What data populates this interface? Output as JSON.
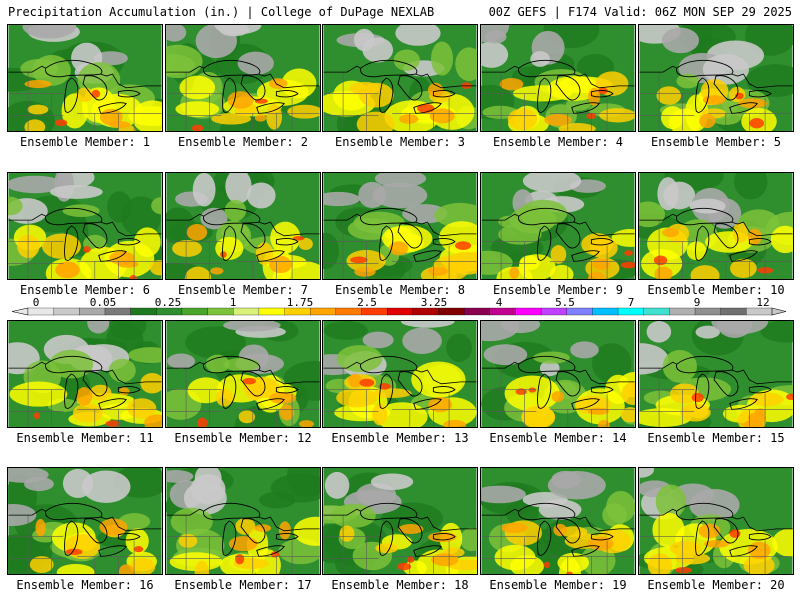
{
  "header": {
    "title": "Precipitation Accumulation (in.) | College of DuPage NEXLAB",
    "run_info": "00Z GEFS | F174 Valid: 06Z MON SEP 29 2025"
  },
  "legend": {
    "tick_labels": [
      "0",
      "0.05",
      "0.25",
      "1",
      "1.75",
      "2.5",
      "3.25",
      "4",
      "5.5",
      "7",
      "9",
      "12"
    ],
    "colors": [
      "#e8e8e8",
      "#c9c9c9",
      "#a9a9a9",
      "#7a7a7a",
      "#1e7a1e",
      "#2f8f2f",
      "#4aa62a",
      "#7cc23a",
      "#d9f07a",
      "#ffff00",
      "#ffd000",
      "#ffa500",
      "#ff7a00",
      "#ff3d00",
      "#e00000",
      "#b00000",
      "#800000",
      "#8a0050",
      "#c00090",
      "#ff00ff",
      "#c040ff",
      "#8080ff",
      "#00c0ff",
      "#00ffff",
      "#40e0d0",
      "#b0b0b0",
      "#909090",
      "#707070",
      "#c8c8c8"
    ]
  },
  "panels": [
    {
      "label": "Ensemble Member: 1"
    },
    {
      "label": "Ensemble Member: 2"
    },
    {
      "label": "Ensemble Member: 3"
    },
    {
      "label": "Ensemble Member: 4"
    },
    {
      "label": "Ensemble Member: 5"
    },
    {
      "label": "Ensemble Member: 6"
    },
    {
      "label": "Ensemble Member: 7"
    },
    {
      "label": "Ensemble Member: 8"
    },
    {
      "label": "Ensemble Member: 9"
    },
    {
      "label": "Ensemble Member: 10"
    },
    {
      "label": "Ensemble Member: 11"
    },
    {
      "label": "Ensemble Member: 12"
    },
    {
      "label": "Ensemble Member: 13"
    },
    {
      "label": "Ensemble Member: 14"
    },
    {
      "label": "Ensemble Member: 15"
    },
    {
      "label": "Ensemble Member: 16"
    },
    {
      "label": "Ensemble Member: 17"
    },
    {
      "label": "Ensemble Member: 18"
    },
    {
      "label": "Ensemble Member: 19"
    },
    {
      "label": "Ensemble Member: 20"
    }
  ]
}
